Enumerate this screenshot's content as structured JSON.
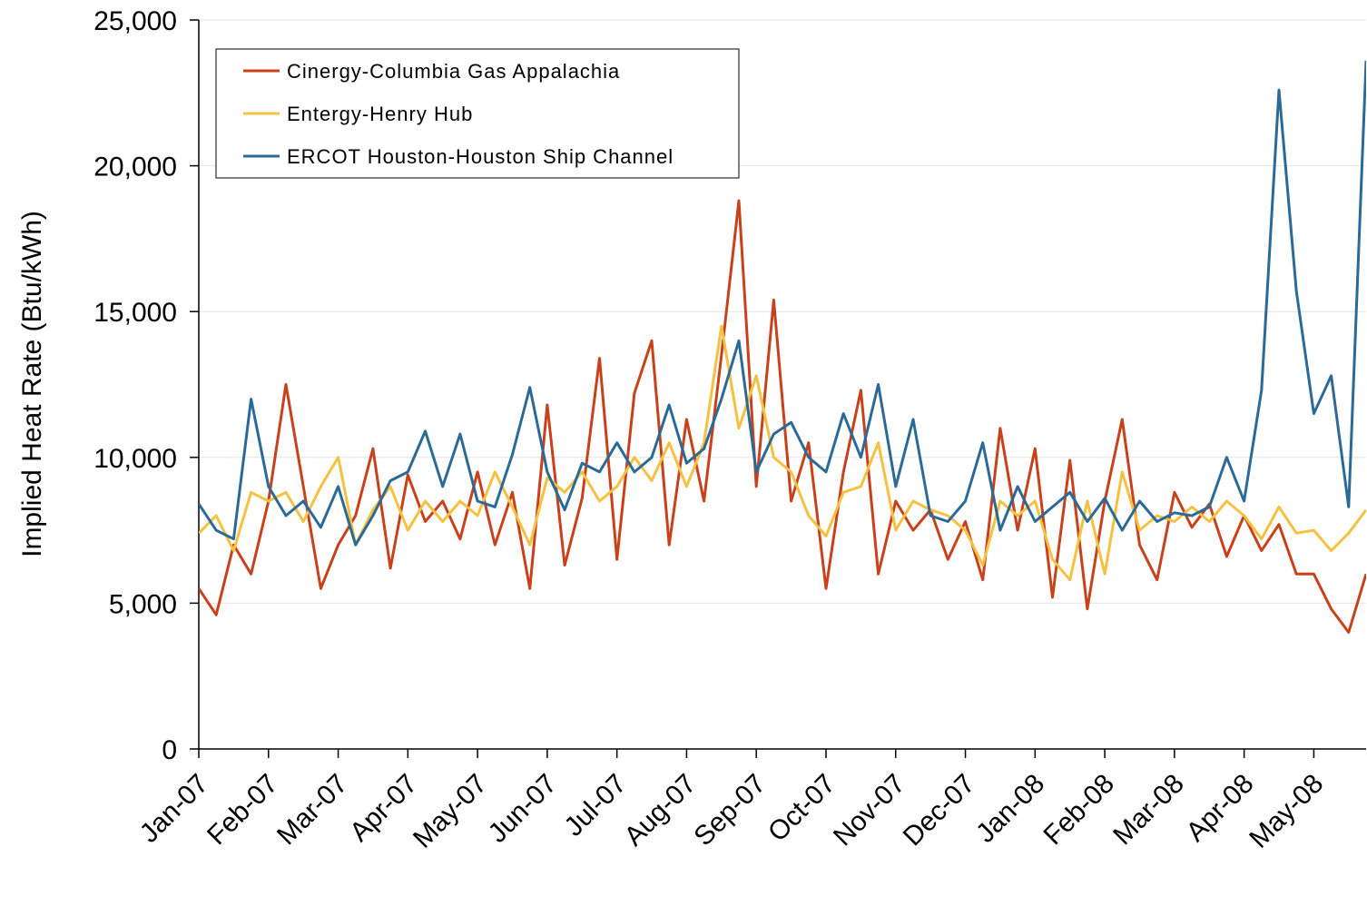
{
  "chart_data": {
    "type": "line",
    "y_label": "Implied Heat Rate (Btu/kWh)",
    "categories": [
      "Jan-07",
      null,
      null,
      null,
      "Feb-07",
      null,
      null,
      null,
      "Mar-07",
      null,
      null,
      null,
      "Apr-07",
      null,
      null,
      null,
      "May-07",
      null,
      null,
      null,
      "Jun-07",
      null,
      null,
      null,
      "Jul-07",
      null,
      null,
      null,
      "Aug-07",
      null,
      null,
      null,
      "Sep-07",
      null,
      null,
      null,
      "Oct-07",
      null,
      null,
      null,
      "Nov-07",
      null,
      null,
      null,
      "Dec-07",
      null,
      null,
      null,
      "Jan-08",
      null,
      null,
      null,
      "Feb-08",
      null,
      null,
      null,
      "Mar-08",
      null,
      null,
      null,
      "Apr-08",
      null,
      null,
      null,
      "May-08",
      null,
      null,
      null
    ],
    "series": [
      {
        "name": "Cinergy-Columbia Gas Appalachia",
        "color": "#c8411b",
        "values": [
          5500,
          4600,
          7000,
          6000,
          8500,
          12500,
          9000,
          5500,
          7000,
          8000,
          10300,
          6200,
          9400,
          7800,
          8500,
          7200,
          9500,
          7000,
          8800,
          5500,
          11800,
          6300,
          8600,
          13400,
          6500,
          12200,
          14000,
          7000,
          11300,
          8500,
          13500,
          18800,
          9000,
          15400,
          8500,
          10500,
          5500,
          9500,
          12300,
          6000,
          8500,
          7500,
          8200,
          6500,
          7800,
          5800,
          11000,
          7500,
          10300,
          5200,
          9900,
          4800,
          8500,
          11300,
          7000,
          5800,
          8800,
          7600,
          8400,
          6600,
          8000,
          6800,
          7700,
          6000,
          6000,
          4800,
          4000,
          6000
        ]
      },
      {
        "name": "Entergy-Henry Hub",
        "color": "#f4c140",
        "values": [
          7400,
          8000,
          6800,
          8800,
          8500,
          8800,
          7800,
          9000,
          10000,
          7000,
          8200,
          9000,
          7500,
          8500,
          7800,
          8500,
          8000,
          9500,
          8300,
          7000,
          9300,
          8800,
          9500,
          8500,
          9000,
          10000,
          9200,
          10500,
          9000,
          10500,
          14500,
          11000,
          12800,
          10000,
          9500,
          8000,
          7300,
          8800,
          9000,
          10500,
          7500,
          8500,
          8200,
          8000,
          7500,
          6300,
          8500,
          8000,
          8500,
          6500,
          5800,
          8500,
          6000,
          9500,
          7500,
          8000,
          7800,
          8300,
          7800,
          8500,
          8000,
          7200,
          8300,
          7400,
          7500,
          6800,
          7400,
          8200
        ]
      },
      {
        "name": "ERCOT Houston-Houston Ship Channel",
        "color": "#2b6a97",
        "values": [
          8400,
          7500,
          7200,
          12000,
          9000,
          8000,
          8500,
          7600,
          9000,
          7000,
          8000,
          9200,
          9500,
          10900,
          9000,
          10800,
          8500,
          8300,
          10100,
          12400,
          9500,
          8200,
          9800,
          9500,
          10500,
          9500,
          10000,
          11800,
          9800,
          10300,
          12000,
          14000,
          9500,
          10800,
          11200,
          10000,
          9500,
          11500,
          10000,
          12500,
          9000,
          11300,
          8000,
          7800,
          8500,
          10500,
          7500,
          9000,
          7800,
          8300,
          8800,
          7800,
          8600,
          7500,
          8500,
          7800,
          8100,
          8000,
          8300,
          10000,
          8500,
          12300,
          22600,
          15700,
          11500,
          12800,
          8300,
          23600
        ]
      }
    ],
    "ylim": [
      0,
      25000
    ],
    "yticks": [
      0,
      {
        "value": 5000,
        "label": "5,000"
      },
      {
        "value": 10000,
        "label": "10,000"
      },
      {
        "value": 15000,
        "label": "15,000"
      },
      {
        "value": 20000,
        "label": "20,000"
      },
      {
        "value": 25000,
        "label": "25,000"
      }
    ],
    "grid": true,
    "legend": "upper-left"
  }
}
